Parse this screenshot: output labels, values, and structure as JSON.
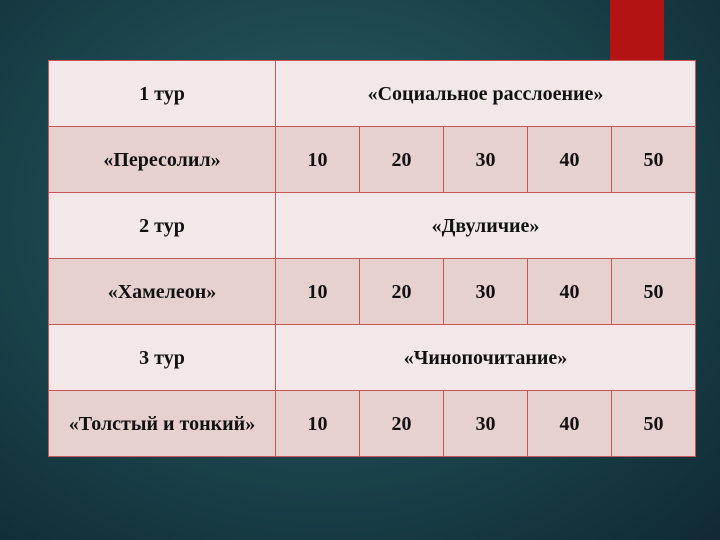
{
  "accent_color": "#b31312",
  "rows": [
    {
      "type": "round",
      "label": "1 тур",
      "theme": "«Социальное расслоение»"
    },
    {
      "type": "points",
      "label": "«Пересолил»",
      "values": [
        "10",
        "20",
        "30",
        "40",
        "50"
      ]
    },
    {
      "type": "round",
      "label": "2 тур",
      "theme": "«Двуличие»"
    },
    {
      "type": "points",
      "label": "«Хамелеон»",
      "values": [
        "10",
        "20",
        "30",
        "40",
        "50"
      ]
    },
    {
      "type": "round",
      "label": "3 тур",
      "theme": "«Чинопочитание»"
    },
    {
      "type": "points",
      "label": "«Толстый и тонкий»",
      "values": [
        "10",
        "20",
        "30",
        "40",
        "50"
      ]
    }
  ]
}
